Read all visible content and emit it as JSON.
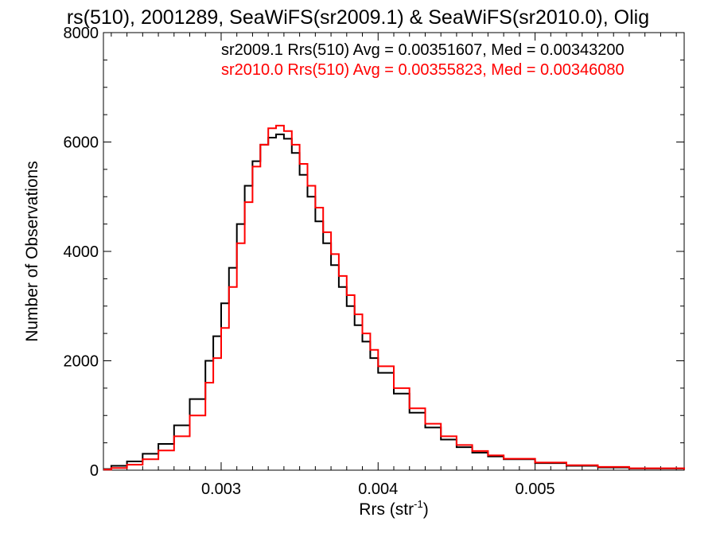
{
  "chart_data": {
    "type": "line",
    "title": "rs(510), 2001289, SeaWiFS(sr2009.1) & SeaWiFS(sr2010.0), Olig",
    "xlabel_main": "Rrs (str",
    "xlabel_sup": "-1",
    "xlabel_close": ")",
    "ylabel": "Number of Observations",
    "xlim": [
      0.00225,
      0.00595
    ],
    "ylim": [
      0,
      8000
    ],
    "xticks": [
      {
        "value": 0.003,
        "label": "0.003"
      },
      {
        "value": 0.004,
        "label": "0.004"
      },
      {
        "value": 0.005,
        "label": "0.005"
      }
    ],
    "yticks": [
      {
        "value": 0,
        "label": "0"
      },
      {
        "value": 2000,
        "label": "2000"
      },
      {
        "value": 4000,
        "label": "4000"
      },
      {
        "value": 6000,
        "label": "6000"
      },
      {
        "value": 8000,
        "label": "8000"
      }
    ],
    "legend_placement": "top-right",
    "series": [
      {
        "name": "sr2009.1",
        "legend_text": "sr2009.1 Rrs(510) Avg = 0.00351607, Med = 0.00343200",
        "color": "#000000",
        "x": [
          0.00225,
          0.0023,
          0.0024,
          0.0025,
          0.0026,
          0.0027,
          0.0028,
          0.0029,
          0.00295,
          0.003,
          0.00305,
          0.0031,
          0.00315,
          0.0032,
          0.00325,
          0.0033,
          0.00335,
          0.0034,
          0.00345,
          0.0035,
          0.00355,
          0.0036,
          0.00365,
          0.0037,
          0.00375,
          0.0038,
          0.00385,
          0.0039,
          0.00395,
          0.004,
          0.0041,
          0.0042,
          0.0043,
          0.0044,
          0.0045,
          0.0046,
          0.0047,
          0.0048,
          0.005,
          0.0052,
          0.0054,
          0.0056,
          0.00595
        ],
        "y": [
          20,
          80,
          160,
          300,
          480,
          820,
          1300,
          2000,
          2450,
          3050,
          3700,
          4500,
          5200,
          5650,
          5950,
          6080,
          6140,
          6060,
          5800,
          5400,
          5000,
          4550,
          4150,
          3750,
          3350,
          3000,
          2650,
          2350,
          2050,
          1780,
          1400,
          1050,
          780,
          560,
          420,
          320,
          250,
          200,
          130,
          80,
          50,
          30,
          10
        ]
      },
      {
        "name": "sr2010.0",
        "legend_text": "sr2010.0 Rrs(510) Avg = 0.00355823, Med = 0.00346080",
        "color": "#ff0000",
        "x": [
          0.00225,
          0.0023,
          0.0024,
          0.0025,
          0.0026,
          0.0027,
          0.0028,
          0.0029,
          0.00295,
          0.003,
          0.00305,
          0.0031,
          0.00315,
          0.0032,
          0.00325,
          0.0033,
          0.00335,
          0.0034,
          0.00345,
          0.0035,
          0.00355,
          0.0036,
          0.00365,
          0.0037,
          0.00375,
          0.0038,
          0.00385,
          0.0039,
          0.00395,
          0.004,
          0.0041,
          0.0042,
          0.0043,
          0.0044,
          0.0045,
          0.0046,
          0.0047,
          0.0048,
          0.005,
          0.0052,
          0.0054,
          0.0056,
          0.00595
        ],
        "y": [
          10,
          40,
          100,
          200,
          360,
          620,
          1000,
          1600,
          2050,
          2600,
          3350,
          4150,
          4900,
          5550,
          5950,
          6250,
          6300,
          6200,
          5950,
          5600,
          5200,
          4800,
          4350,
          3950,
          3550,
          3200,
          2850,
          2500,
          2200,
          1900,
          1500,
          1130,
          850,
          620,
          460,
          350,
          270,
          210,
          140,
          90,
          60,
          35,
          10
        ]
      }
    ]
  }
}
